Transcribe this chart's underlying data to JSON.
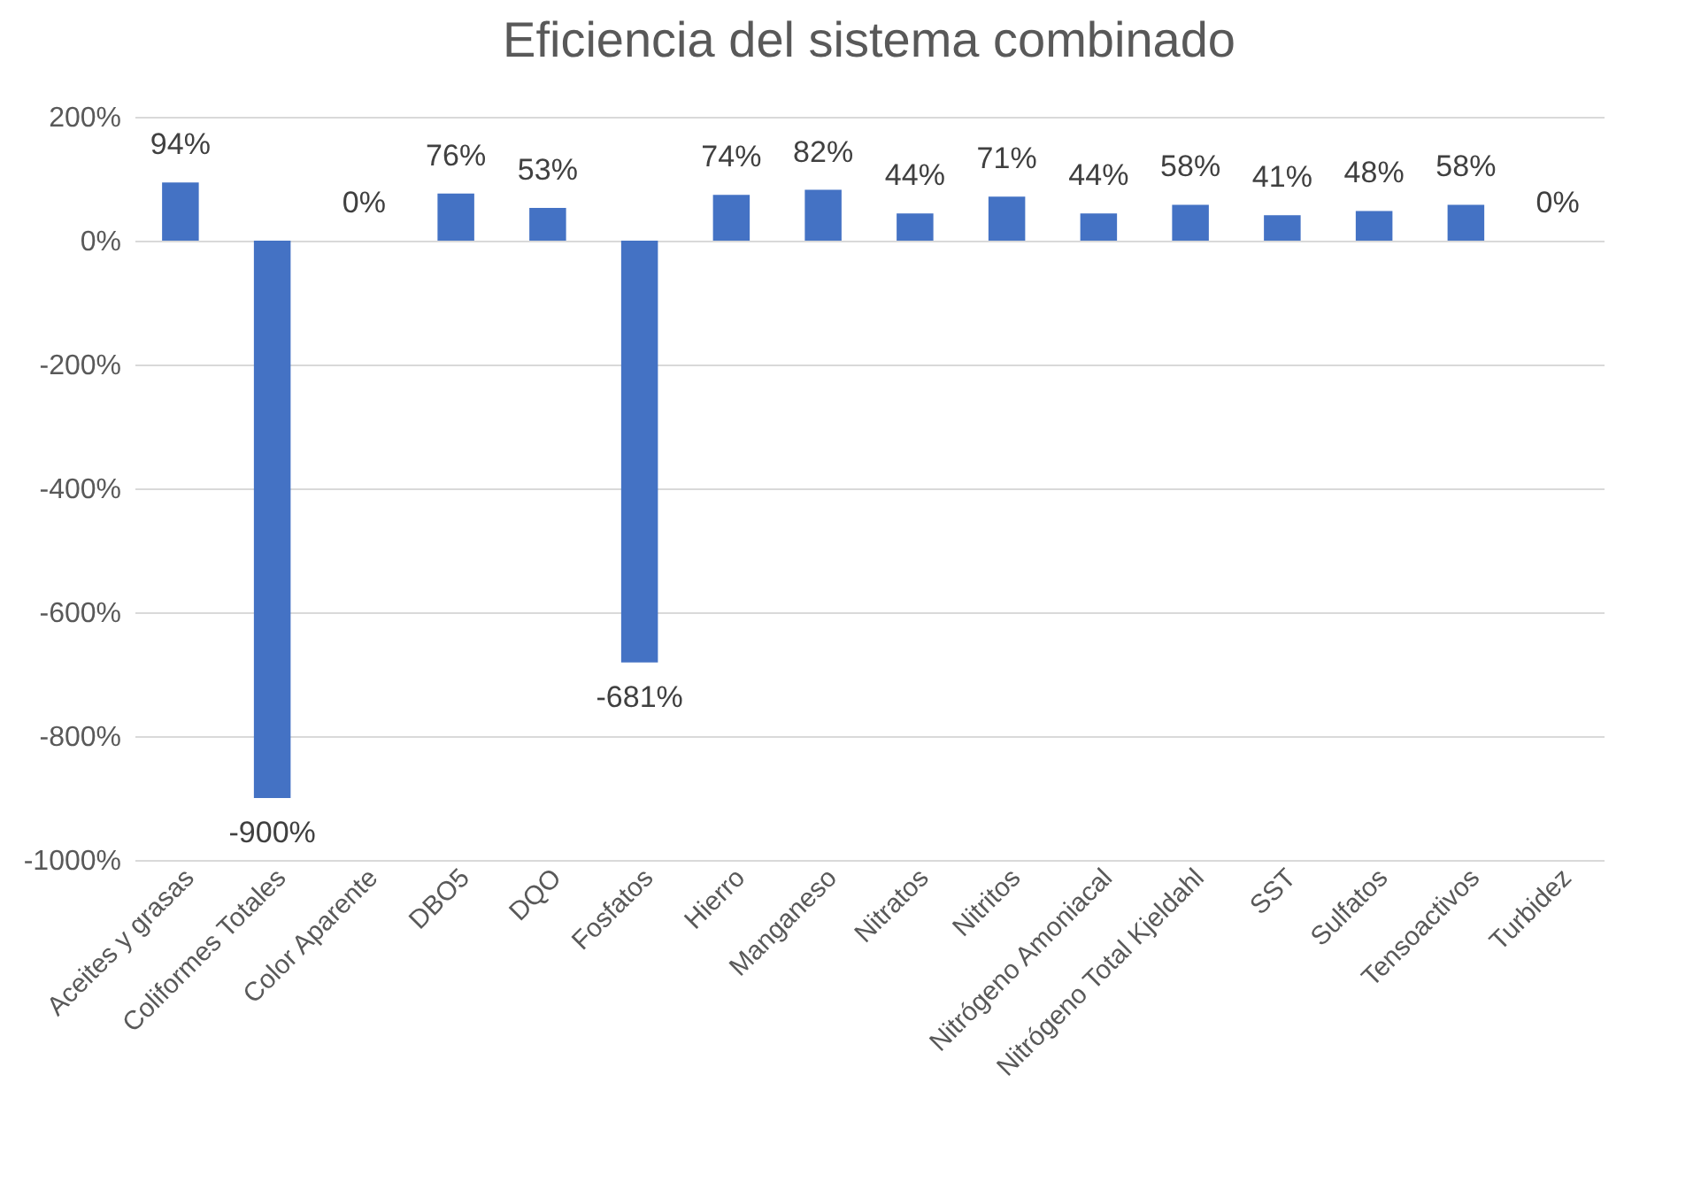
{
  "chart_data": {
    "type": "bar",
    "title": "Eficiencia del sistema combinado",
    "categories": [
      "Aceites y grasas",
      "Coliformes Totales",
      "Color Aparente",
      "DBO5",
      "DQO",
      "Fosfatos",
      "Hierro",
      "Manganeso",
      "Nitratos",
      "Nitritos",
      "Nitrógeno Amoniacal",
      "Nitrógeno Total Kjeldahl",
      "SST",
      "Sulfatos",
      "Tensoactivos",
      "Turbidez"
    ],
    "values": [
      94,
      -900,
      0,
      76,
      53,
      -681,
      74,
      82,
      44,
      71,
      44,
      58,
      41,
      48,
      58,
      0
    ],
    "value_labels": [
      "94%",
      "-900%",
      "0%",
      "76%",
      "53%",
      "-681%",
      "74%",
      "82%",
      "44%",
      "71%",
      "44%",
      "58%",
      "41%",
      "48%",
      "58%",
      "0%"
    ],
    "color": "#4472c4",
    "ylim": [
      -1000,
      200
    ],
    "yticks": [
      {
        "value": -1000,
        "label": "-1000%"
      },
      {
        "value": -800,
        "label": "-800%"
      },
      {
        "value": -600,
        "label": "-600%"
      },
      {
        "value": -400,
        "label": "-400%"
      },
      {
        "value": -200,
        "label": "-200%"
      },
      {
        "value": 0,
        "label": "0%"
      },
      {
        "value": 200,
        "label": "200%"
      }
    ],
    "grid": "y"
  }
}
